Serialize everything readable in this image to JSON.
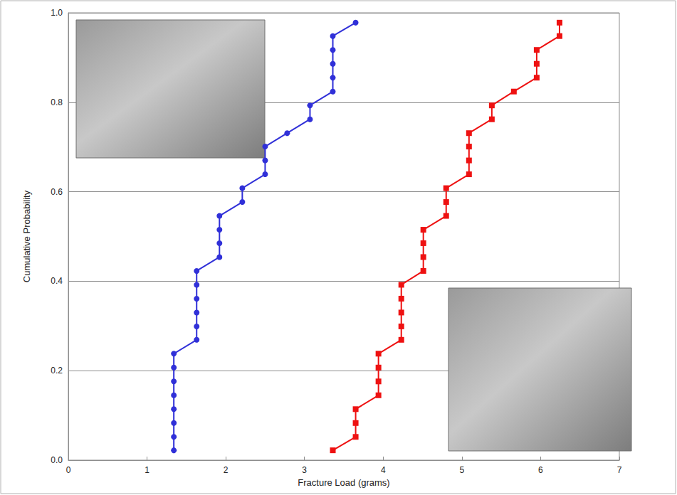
{
  "chart_data": {
    "type": "line",
    "x_label": "Fracture Load (grams)",
    "y_label": "Cumulative Probability",
    "xlim": [
      0,
      7
    ],
    "xticks": [
      0,
      1,
      2,
      3,
      4,
      5,
      6,
      7
    ],
    "ylim": [
      0,
      1
    ],
    "yticks": [
      {
        "value": 0,
        "label": "0.0"
      },
      {
        "value": 0.2,
        "label": "0.2"
      },
      {
        "value": 0.4,
        "label": "0.4"
      },
      {
        "value": 0.6,
        "label": "0.6"
      },
      {
        "value": 0.8,
        "label": "0.8"
      },
      {
        "value": 1,
        "label": "1.0"
      }
    ],
    "grid": "y",
    "series": [
      {
        "color": "#3030d8",
        "marker": "circle",
        "line_style": "solid",
        "x": [
          1.34,
          1.34,
          1.34,
          1.34,
          1.34,
          1.34,
          1.34,
          1.34,
          1.63,
          1.63,
          1.63,
          1.63,
          1.63,
          1.63,
          1.92,
          1.92,
          1.92,
          1.92,
          2.21,
          2.21,
          2.5,
          2.5,
          2.5,
          2.78,
          3.07,
          3.07,
          3.36,
          3.36,
          3.36,
          3.36,
          3.36,
          3.65
        ],
        "values": [
          0.022,
          0.052,
          0.083,
          0.114,
          0.145,
          0.176,
          0.207,
          0.238,
          0.269,
          0.299,
          0.33,
          0.361,
          0.392,
          0.423,
          0.454,
          0.485,
          0.515,
          0.546,
          0.577,
          0.608,
          0.639,
          0.67,
          0.701,
          0.731,
          0.762,
          0.793,
          0.824,
          0.855,
          0.886,
          0.917,
          0.948,
          0.978
        ]
      },
      {
        "color": "#ee1111",
        "marker": "square",
        "line_style": "solid",
        "x": [
          3.36,
          3.65,
          3.65,
          3.65,
          3.94,
          3.94,
          3.94,
          3.94,
          4.23,
          4.23,
          4.23,
          4.23,
          4.23,
          4.51,
          4.51,
          4.51,
          4.51,
          4.8,
          4.8,
          4.8,
          5.09,
          5.09,
          5.09,
          5.09,
          5.38,
          5.38,
          5.66,
          5.95,
          5.95,
          5.95,
          6.24,
          6.24
        ],
        "values": [
          0.022,
          0.052,
          0.083,
          0.114,
          0.145,
          0.176,
          0.207,
          0.238,
          0.269,
          0.299,
          0.33,
          0.361,
          0.392,
          0.423,
          0.454,
          0.485,
          0.515,
          0.546,
          0.577,
          0.608,
          0.639,
          0.67,
          0.701,
          0.731,
          0.762,
          0.793,
          0.824,
          0.855,
          0.886,
          0.917,
          0.948,
          0.978
        ]
      }
    ]
  }
}
